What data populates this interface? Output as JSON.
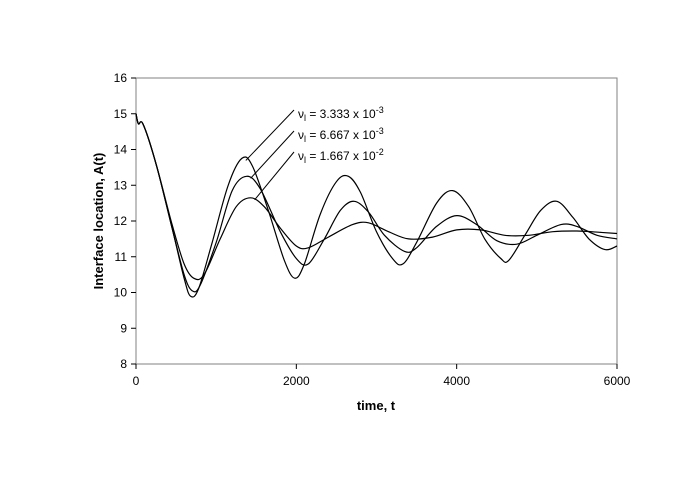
{
  "chart_data": {
    "type": "line",
    "title": "",
    "xlabel": "time, t",
    "ylabel": "Interface location, A(t)",
    "xlim": [
      0,
      6000
    ],
    "ylim": [
      8,
      16
    ],
    "x_ticks": [
      0,
      2000,
      4000,
      6000
    ],
    "y_ticks": [
      8,
      9,
      10,
      11,
      12,
      13,
      14,
      15,
      16
    ],
    "grid": false,
    "legend_placement": "top-center, with leader lines to each curve",
    "line_color": "#000000",
    "series": [
      {
        "name": "ν_l = 3.333 x 10^-3",
        "label_main": "ν",
        "label_sub": "l",
        "label_text": " = 3.333 x 10",
        "label_exp": "-3",
        "points": [
          [
            0,
            15.0
          ],
          [
            30,
            14.72
          ],
          [
            90,
            14.7
          ],
          [
            250,
            13.6
          ],
          [
            450,
            11.8
          ],
          [
            600,
            10.4
          ],
          [
            680,
            9.9
          ],
          [
            780,
            10.1
          ],
          [
            950,
            11.4
          ],
          [
            1150,
            13.0
          ],
          [
            1320,
            13.75
          ],
          [
            1450,
            13.55
          ],
          [
            1650,
            12.3
          ],
          [
            1850,
            10.9
          ],
          [
            1980,
            10.4
          ],
          [
            2100,
            10.8
          ],
          [
            2300,
            12.2
          ],
          [
            2500,
            13.1
          ],
          [
            2650,
            13.25
          ],
          [
            2800,
            12.8
          ],
          [
            3000,
            11.7
          ],
          [
            3200,
            10.95
          ],
          [
            3330,
            10.8
          ],
          [
            3500,
            11.4
          ],
          [
            3750,
            12.5
          ],
          [
            3950,
            12.85
          ],
          [
            4150,
            12.4
          ],
          [
            4350,
            11.5
          ],
          [
            4550,
            10.95
          ],
          [
            4650,
            10.9
          ],
          [
            4850,
            11.6
          ],
          [
            5050,
            12.3
          ],
          [
            5250,
            12.55
          ],
          [
            5450,
            12.1
          ],
          [
            5650,
            11.5
          ],
          [
            5850,
            11.2
          ],
          [
            6000,
            11.3
          ]
        ]
      },
      {
        "name": "ν_l = 6.667 x 10^-3",
        "label_main": "ν",
        "label_sub": "l",
        "label_text": " = 6.667 x 10",
        "label_exp": "-3",
        "points": [
          [
            0,
            15.0
          ],
          [
            30,
            14.72
          ],
          [
            90,
            14.7
          ],
          [
            250,
            13.6
          ],
          [
            450,
            11.8
          ],
          [
            600,
            10.5
          ],
          [
            700,
            10.05
          ],
          [
            800,
            10.2
          ],
          [
            1000,
            11.4
          ],
          [
            1200,
            12.85
          ],
          [
            1380,
            13.25
          ],
          [
            1550,
            12.9
          ],
          [
            1800,
            11.7
          ],
          [
            2000,
            10.95
          ],
          [
            2150,
            10.8
          ],
          [
            2350,
            11.5
          ],
          [
            2550,
            12.3
          ],
          [
            2720,
            12.55
          ],
          [
            2900,
            12.25
          ],
          [
            3100,
            11.6
          ],
          [
            3350,
            11.15
          ],
          [
            3500,
            11.25
          ],
          [
            3750,
            11.85
          ],
          [
            4000,
            12.15
          ],
          [
            4250,
            11.9
          ],
          [
            4500,
            11.45
          ],
          [
            4750,
            11.35
          ],
          [
            5000,
            11.6
          ],
          [
            5300,
            11.9
          ],
          [
            5500,
            11.85
          ],
          [
            5750,
            11.6
          ],
          [
            6000,
            11.5
          ]
        ]
      },
      {
        "name": "ν_l = 1.667 x 10^-2",
        "label_main": "ν",
        "label_sub": "l",
        "label_text": " = 1.667 x 10",
        "label_exp": "-2",
        "points": [
          [
            0,
            15.0
          ],
          [
            30,
            14.72
          ],
          [
            90,
            14.7
          ],
          [
            250,
            13.6
          ],
          [
            450,
            11.9
          ],
          [
            600,
            10.8
          ],
          [
            720,
            10.4
          ],
          [
            850,
            10.5
          ],
          [
            1050,
            11.5
          ],
          [
            1250,
            12.4
          ],
          [
            1430,
            12.65
          ],
          [
            1600,
            12.4
          ],
          [
            1800,
            11.8
          ],
          [
            2000,
            11.3
          ],
          [
            2150,
            11.25
          ],
          [
            2400,
            11.55
          ],
          [
            2700,
            11.9
          ],
          [
            2900,
            11.95
          ],
          [
            3150,
            11.7
          ],
          [
            3400,
            11.5
          ],
          [
            3700,
            11.55
          ],
          [
            4000,
            11.75
          ],
          [
            4300,
            11.75
          ],
          [
            4600,
            11.6
          ],
          [
            4900,
            11.6
          ],
          [
            5200,
            11.7
          ],
          [
            5500,
            11.72
          ],
          [
            5800,
            11.68
          ],
          [
            6000,
            11.65
          ]
        ]
      }
    ]
  }
}
